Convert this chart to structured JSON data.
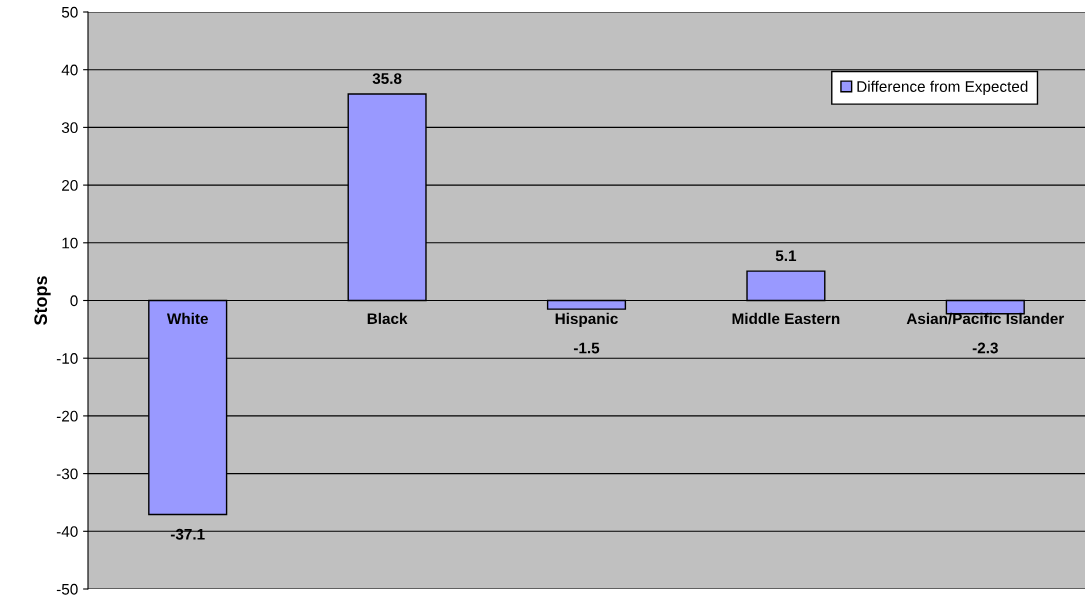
{
  "chart_data": {
    "type": "bar",
    "ylabel": "Stops",
    "categories": [
      "White",
      "Black",
      "Hispanic",
      "Middle Eastern",
      "Asian/Pacific Islander"
    ],
    "series": [
      {
        "name": "Difference from Expected",
        "color": "#9999ff",
        "values": [
          -37.1,
          35.8,
          -1.5,
          5.1,
          -2.3
        ]
      }
    ],
    "ylim": [
      -50,
      50
    ],
    "yticks": [
      -50,
      -40,
      -30,
      -20,
      -10,
      0,
      10,
      20,
      30,
      40,
      50
    ],
    "grid": "y",
    "legend": "top right",
    "data_labels": true
  }
}
